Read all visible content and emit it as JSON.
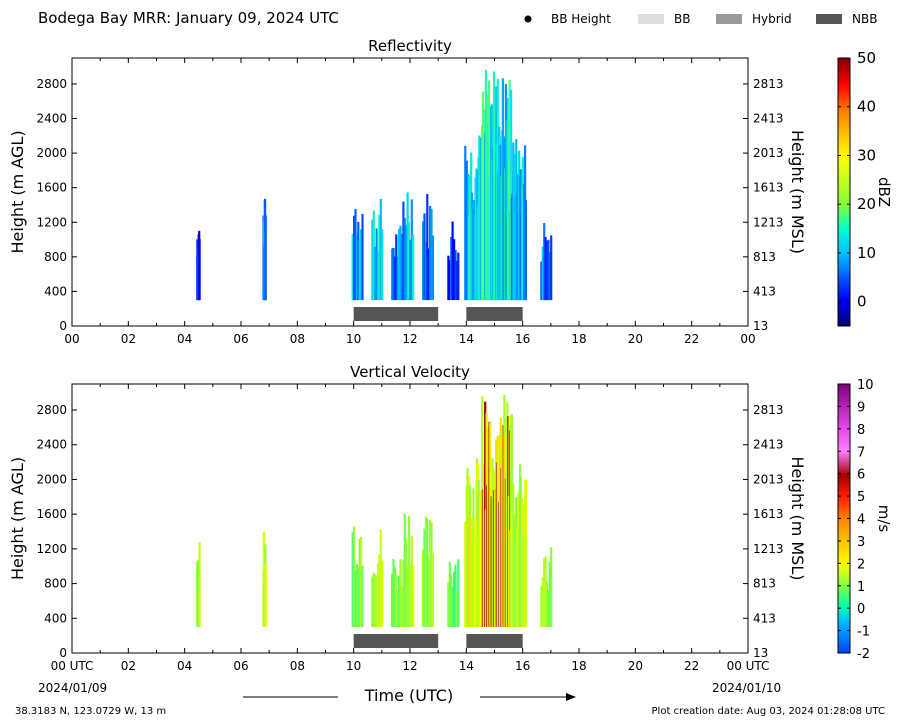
{
  "page": {
    "title": "Bodega Bay MRR:  January 09, 2024 UTC",
    "legend": [
      {
        "label": "BB Height",
        "kind": "dot",
        "color": "#000000"
      },
      {
        "label": "BB",
        "kind": "box",
        "color": "#dddddd"
      },
      {
        "label": "Hybrid",
        "kind": "box",
        "color": "#999999"
      },
      {
        "label": "NBB",
        "kind": "box",
        "color": "#555555"
      }
    ],
    "footer_left": "38.3183 N, 123.0729 W, 13 m",
    "footer_right": "Plot creation date: Aug 03, 2024 01:28:08 UTC",
    "x_axis_label": "Time (UTC)",
    "date_start": "2024/01/09",
    "date_end": "2024/01/10"
  },
  "chart_data": [
    {
      "type": "heatmap",
      "title": "Reflectivity",
      "ylabel": "Height (m AGL)",
      "ylabel_right": "Height (m MSL)",
      "xlabel": "",
      "xlim": [
        0,
        24
      ],
      "ylim": [
        0,
        3100
      ],
      "x_ticks": [
        "00",
        "02",
        "04",
        "06",
        "08",
        "10",
        "12",
        "14",
        "16",
        "18",
        "20",
        "22",
        "00"
      ],
      "y_ticks": [
        0,
        400,
        800,
        1200,
        1600,
        2000,
        2400,
        2800
      ],
      "y_ticks_right": [
        "13",
        "413",
        "813",
        "1213",
        "1613",
        "2013",
        "2413",
        "2813"
      ],
      "colorbar": {
        "label": "dBZ",
        "min": -5,
        "max": 50,
        "ticks": [
          0,
          10,
          20,
          30,
          40,
          50
        ]
      },
      "precip_blocks": [
        {
          "time": 4.45,
          "base": 300,
          "top": 1300,
          "value": 3
        },
        {
          "time": 6.8,
          "base": 300,
          "top": 1500,
          "value": 8
        },
        {
          "time": 10.1,
          "base": 300,
          "top": 1700,
          "value": 7
        },
        {
          "time": 10.8,
          "base": 300,
          "top": 1500,
          "value": 12
        },
        {
          "time": 11.5,
          "base": 300,
          "top": 1200,
          "value": 6
        },
        {
          "time": 11.9,
          "base": 300,
          "top": 1800,
          "value": 9
        },
        {
          "time": 12.6,
          "base": 300,
          "top": 1600,
          "value": 5
        },
        {
          "time": 13.5,
          "base": 300,
          "top": 1300,
          "value": 4
        },
        {
          "time": 14.2,
          "base": 300,
          "top": 2300,
          "value": 11
        },
        {
          "time": 14.8,
          "base": 300,
          "top": 3000,
          "value": 14
        },
        {
          "time": 15.3,
          "base": 300,
          "top": 3000,
          "value": 13
        },
        {
          "time": 15.8,
          "base": 300,
          "top": 2200,
          "value": 9
        },
        {
          "time": 16.8,
          "base": 300,
          "top": 1300,
          "value": 6
        }
      ],
      "nbb_bars": [
        [
          10,
          13
        ],
        [
          14,
          16
        ]
      ]
    },
    {
      "type": "heatmap",
      "title": "Vertical Velocity",
      "ylabel": "Height (m AGL)",
      "ylabel_right": "Height (m MSL)",
      "xlabel": "Time (UTC)",
      "xlim": [
        0,
        24
      ],
      "ylim": [
        0,
        3100
      ],
      "x_ticks": [
        "00 UTC",
        "02",
        "04",
        "06",
        "08",
        "10",
        "12",
        "14",
        "16",
        "18",
        "20",
        "22",
        "00 UTC"
      ],
      "y_ticks": [
        0,
        400,
        800,
        1200,
        1600,
        2000,
        2400,
        2800
      ],
      "y_ticks_right": [
        "13",
        "413",
        "813",
        "1213",
        "1613",
        "2013",
        "2413",
        "2813"
      ],
      "colorbar": {
        "label": "m/s",
        "min": -2,
        "max": 10,
        "ticks": [
          -2,
          -1,
          0,
          1,
          2,
          3,
          4,
          5,
          6,
          7,
          8,
          9,
          10
        ]
      },
      "precip_blocks": [
        {
          "time": 4.45,
          "base": 300,
          "top": 1300,
          "value": 1.2
        },
        {
          "time": 6.8,
          "base": 300,
          "top": 1500,
          "value": 1.5
        },
        {
          "time": 10.1,
          "base": 300,
          "top": 1700,
          "value": 1.0
        },
        {
          "time": 10.8,
          "base": 300,
          "top": 1500,
          "value": 1.5
        },
        {
          "time": 11.5,
          "base": 300,
          "top": 1200,
          "value": 1.0
        },
        {
          "time": 11.9,
          "base": 300,
          "top": 1800,
          "value": 1.4
        },
        {
          "time": 12.6,
          "base": 300,
          "top": 1600,
          "value": 1.2
        },
        {
          "time": 13.5,
          "base": 300,
          "top": 1300,
          "value": 0.8
        },
        {
          "time": 14.2,
          "base": 300,
          "top": 2300,
          "value": 1.8
        },
        {
          "time": 14.8,
          "base": 300,
          "top": 3000,
          "value": 6.0
        },
        {
          "time": 15.3,
          "base": 300,
          "top": 3000,
          "value": 6.3
        },
        {
          "time": 15.8,
          "base": 300,
          "top": 2200,
          "value": 1.6
        },
        {
          "time": 16.8,
          "base": 300,
          "top": 1300,
          "value": 1.0
        }
      ],
      "nbb_bars": [
        [
          10,
          13
        ],
        [
          14,
          16
        ]
      ]
    }
  ]
}
